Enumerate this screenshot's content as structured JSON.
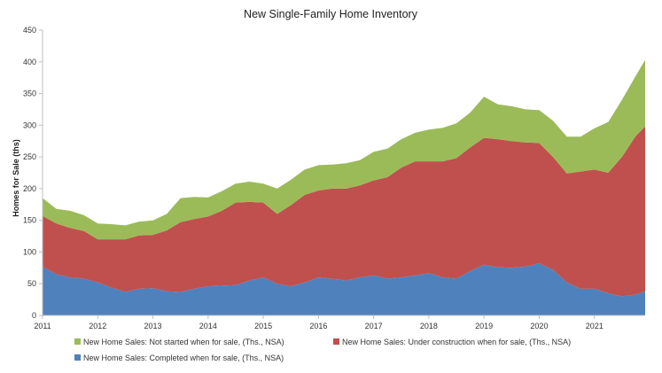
{
  "chart_data": {
    "type": "area",
    "stacked": true,
    "title": "New Single-Family Home Inventory",
    "xlabel": "",
    "ylabel": "Homes for Sale (ths)",
    "ylim": [
      0,
      450
    ],
    "yticks": [
      "0",
      "50",
      "100",
      "150",
      "200",
      "250",
      "300",
      "350",
      "400",
      "450"
    ],
    "xlim": [
      2011.0,
      2021.92
    ],
    "xticks": [
      "2011",
      "2012",
      "2013",
      "2014",
      "2015",
      "2016",
      "2017",
      "2018",
      "2019",
      "2020",
      "2021"
    ],
    "grid": false,
    "legend_position": "bottom",
    "x": [
      2011.0,
      2011.25,
      2011.5,
      2011.75,
      2012.0,
      2012.25,
      2012.5,
      2012.75,
      2013.0,
      2013.25,
      2013.5,
      2013.75,
      2014.0,
      2014.25,
      2014.5,
      2014.75,
      2015.0,
      2015.25,
      2015.5,
      2015.75,
      2016.0,
      2016.25,
      2016.5,
      2016.75,
      2017.0,
      2017.25,
      2017.5,
      2017.75,
      2018.0,
      2018.25,
      2018.5,
      2018.75,
      2019.0,
      2019.25,
      2019.5,
      2019.75,
      2020.0,
      2020.25,
      2020.5,
      2020.75,
      2021.0,
      2021.25,
      2021.5,
      2021.75,
      2021.92
    ],
    "series": [
      {
        "name": "New Home Sales: Completed when for sale, (Ths., NSA)",
        "color": "#4f81bd",
        "values": [
          77,
          65,
          60,
          58,
          52,
          44,
          37,
          42,
          43,
          38,
          37,
          42,
          46,
          47,
          48,
          55,
          60,
          50,
          46,
          52,
          60,
          58,
          55,
          60,
          63,
          58,
          60,
          63,
          67,
          60,
          58,
          70,
          80,
          76,
          75,
          77,
          82,
          72,
          52,
          42,
          42,
          35,
          30,
          33,
          38
        ]
      },
      {
        "name": "New Home Sales: Under construction when for sale, (Ths., NSA)",
        "color": "#c0504d",
        "values": [
          80,
          80,
          78,
          75,
          68,
          76,
          83,
          84,
          84,
          96,
          110,
          110,
          110,
          118,
          130,
          124,
          118,
          110,
          128,
          138,
          137,
          142,
          145,
          145,
          150,
          160,
          173,
          180,
          176,
          183,
          190,
          195,
          200,
          202,
          200,
          196,
          190,
          178,
          172,
          185,
          188,
          190,
          220,
          250,
          260
        ]
      },
      {
        "name": "New Home Sales: Not started when for sale, (Ths., NSA)",
        "color": "#9bbb59",
        "values": [
          28,
          23,
          27,
          25,
          25,
          24,
          22,
          22,
          23,
          26,
          38,
          35,
          30,
          31,
          30,
          32,
          30,
          40,
          40,
          40,
          40,
          38,
          40,
          40,
          45,
          45,
          45,
          45,
          50,
          53,
          55,
          55,
          65,
          55,
          55,
          52,
          52,
          57,
          58,
          55,
          65,
          80,
          90,
          95,
          105
        ]
      }
    ]
  }
}
